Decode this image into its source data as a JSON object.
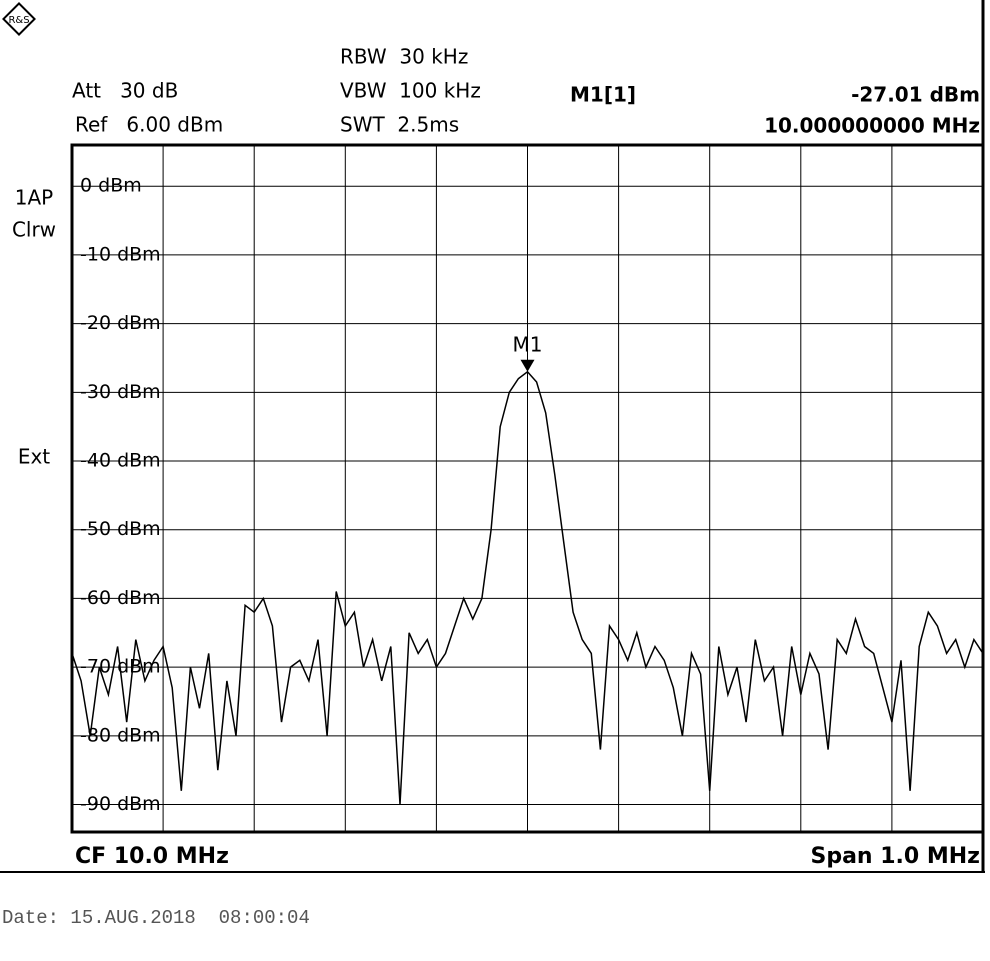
{
  "header": {
    "rbw": "RBW  30 kHz",
    "vbw": "VBW  100 kHz",
    "swt": "SWT  2.5ms",
    "att": "Att   30 dB",
    "ref": "Ref   6.00 dBm",
    "marker_name": "M1[1]",
    "marker_level": "-27.01 dBm",
    "marker_freq": "10.000000000 MHz"
  },
  "side": {
    "trace": "1AP",
    "mode": "Clrw",
    "trigger": "Ext"
  },
  "footer": {
    "center": "CF 10.0 MHz",
    "span": "Span 1.0 MHz",
    "date": "Date: 15.AUG.2018  08:00:04"
  },
  "chart_data": {
    "type": "line",
    "color": "#000000",
    "grid": true,
    "xlim": [
      9.5,
      10.5
    ],
    "ylim": [
      -94,
      6
    ],
    "yticks": [
      {
        "value": 0,
        "label": "0 dBm"
      },
      {
        "value": -10,
        "label": "-10 dBm"
      },
      {
        "value": -20,
        "label": "-20 dBm"
      },
      {
        "value": -30,
        "label": "-30 dBm"
      },
      {
        "value": -40,
        "label": "-40 dBm"
      },
      {
        "value": -50,
        "label": "-50 dBm"
      },
      {
        "value": -60,
        "label": "-60 dBm"
      },
      {
        "value": -70,
        "label": "-70 dBm"
      },
      {
        "value": -80,
        "label": "-80 dBm"
      },
      {
        "value": -90,
        "label": "-90 dBm"
      }
    ],
    "x": [
      9.5,
      9.51,
      9.52,
      9.53,
      9.54,
      9.55,
      9.56,
      9.57,
      9.58,
      9.59,
      9.6,
      9.61,
      9.62,
      9.63,
      9.64,
      9.65,
      9.66,
      9.67,
      9.68,
      9.69,
      9.7,
      9.71,
      9.72,
      9.73,
      9.74,
      9.75,
      9.76,
      9.77,
      9.78,
      9.79,
      9.8,
      9.81,
      9.82,
      9.83,
      9.84,
      9.85,
      9.86,
      9.87,
      9.88,
      9.89,
      9.9,
      9.91,
      9.92,
      9.93,
      9.94,
      9.95,
      9.96,
      9.97,
      9.98,
      9.99,
      10.0,
      10.01,
      10.02,
      10.03,
      10.04,
      10.05,
      10.06,
      10.07,
      10.08,
      10.09,
      10.1,
      10.11,
      10.12,
      10.13,
      10.14,
      10.15,
      10.16,
      10.17,
      10.18,
      10.19,
      10.2,
      10.21,
      10.22,
      10.23,
      10.24,
      10.25,
      10.26,
      10.27,
      10.28,
      10.29,
      10.3,
      10.31,
      10.32,
      10.33,
      10.34,
      10.35,
      10.36,
      10.37,
      10.38,
      10.39,
      10.4,
      10.41,
      10.42,
      10.43,
      10.44,
      10.45,
      10.46,
      10.47,
      10.48,
      10.49,
      10.5
    ],
    "values": [
      -68,
      -72,
      -80,
      -70,
      -74,
      -67,
      -78,
      -66,
      -72,
      -69,
      -67,
      -73,
      -88,
      -70,
      -76,
      -68,
      -85,
      -72,
      -80,
      -61,
      -62,
      -60,
      -64,
      -78,
      -70,
      -69,
      -72,
      -66,
      -80,
      -59,
      -64,
      -62,
      -70,
      -66,
      -72,
      -67,
      -90,
      -65,
      -68,
      -66,
      -70,
      -68,
      -64,
      -60,
      -63,
      -60,
      -50,
      -35,
      -30,
      -28,
      -27.01,
      -28.5,
      -33,
      -42,
      -52,
      -62,
      -66,
      -68,
      -82,
      -64,
      -66,
      -69,
      -65,
      -70,
      -67,
      -69,
      -73,
      -80,
      -68,
      -71,
      -88,
      -67,
      -74,
      -70,
      -78,
      -66,
      -72,
      -70,
      -80,
      -67,
      -74,
      -68,
      -71,
      -82,
      -66,
      -68,
      -63,
      -67,
      -68,
      -73,
      -78,
      -69,
      -88,
      -67,
      -62,
      -64,
      -68,
      -66,
      -70,
      -66,
      -68
    ],
    "marker": {
      "label": "M1",
      "x": 10.0,
      "y": -27.01
    }
  }
}
